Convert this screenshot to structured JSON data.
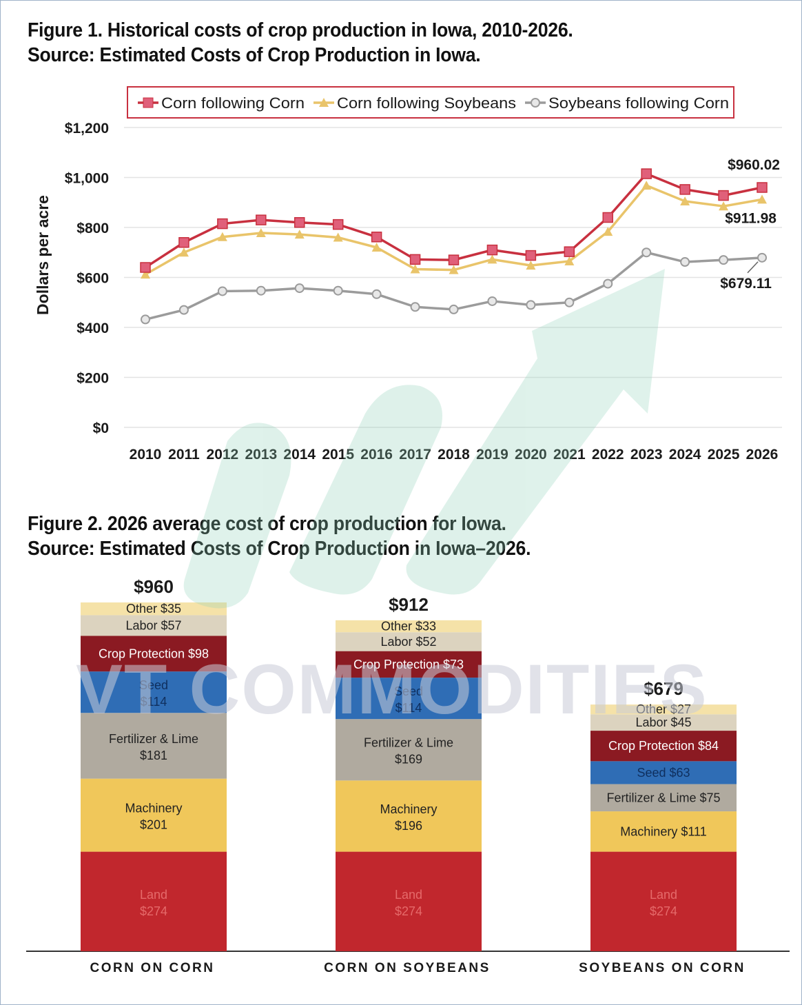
{
  "figure1": {
    "title_line1": "Figure 1. Historical costs of crop production in Iowa, 2010-2026.",
    "title_line2": "Source: Estimated Costs of Crop Production in Iowa.",
    "ylabel": "Dollars per acre"
  },
  "figure2": {
    "title_line1": "Figure 2. 2026 average cost of crop production for Iowa.",
    "title_line2": "Source: Estimated Costs of Crop Production in Iowa–2026."
  },
  "watermark_text": "VT COMMODITIES",
  "chart_data": [
    {
      "type": "line",
      "title": "Figure 1. Historical costs of crop production in Iowa, 2010-2026.",
      "ylabel": "Dollars per acre",
      "ylim": [
        0,
        1200
      ],
      "yticks": [
        0,
        200,
        400,
        600,
        800,
        1000,
        1200
      ],
      "ytick_labels": [
        "$0",
        "$200",
        "$400",
        "$600",
        "$800",
        "$1,000",
        "$1,200"
      ],
      "grid": "horizontal",
      "legend": "top",
      "x": [
        "2010",
        "2011",
        "2012",
        "2013",
        "2014",
        "2015",
        "2016",
        "2017",
        "2018",
        "2019",
        "2020",
        "2021",
        "2022",
        "2023",
        "2024",
        "2025",
        "2026"
      ],
      "series": [
        {
          "name": "Corn following Corn",
          "color": "#c8303f",
          "marker": "square",
          "values": [
            640,
            740,
            815,
            830,
            820,
            812,
            762,
            672,
            670,
            710,
            688,
            703,
            840,
            1015,
            952,
            928,
            960.02
          ]
        },
        {
          "name": "Corn following Soybeans",
          "color": "#e9c46a",
          "marker": "triangle",
          "values": [
            612,
            700,
            762,
            778,
            772,
            760,
            720,
            633,
            630,
            672,
            648,
            665,
            783,
            968,
            905,
            885,
            911.98
          ]
        },
        {
          "name": "Soybeans following Corn",
          "color": "#9b9b9b",
          "marker": "circle",
          "values": [
            432,
            470,
            545,
            547,
            557,
            547,
            533,
            482,
            472,
            505,
            490,
            500,
            575,
            700,
            662,
            670,
            679.11
          ]
        }
      ],
      "annotations": [
        "$960.02",
        "$911.98",
        "$679.11"
      ]
    },
    {
      "type": "bar",
      "stacked": true,
      "title": "Figure 2. 2026 average cost of crop production for Iowa.",
      "categories": [
        "CORN ON CORN",
        "CORN ON SOYBEANS",
        "SOYBEANS ON CORN"
      ],
      "totals": [
        "$960",
        "$912",
        "$679"
      ],
      "series": [
        {
          "name": "Land",
          "color": "#c1272d",
          "text_color": "#e56a6a",
          "values": [
            274,
            274,
            274
          ]
        },
        {
          "name": "Machinery",
          "color": "#f0c75a",
          "text_color": "#222222",
          "values": [
            201,
            196,
            111
          ]
        },
        {
          "name": "Fertilizer & Lime",
          "color": "#b0aa9f",
          "text_color": "#222222",
          "values": [
            181,
            169,
            75
          ]
        },
        {
          "name": "Seed",
          "color": "#2f6db5",
          "text_color": "#0f2f5e",
          "values": [
            114,
            114,
            63
          ]
        },
        {
          "name": "Crop Protection",
          "color": "#8b1a22",
          "text_color": "#ffffff",
          "values": [
            98,
            73,
            84
          ]
        },
        {
          "name": "Labor",
          "color": "#dcd3bf",
          "text_color": "#222222",
          "values": [
            57,
            52,
            45
          ]
        },
        {
          "name": "Other",
          "color": "#f5e2a8",
          "text_color": "#222222",
          "values": [
            35,
            33,
            27
          ]
        }
      ]
    }
  ]
}
